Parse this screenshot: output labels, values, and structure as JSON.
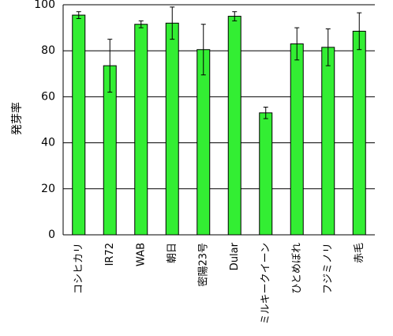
{
  "chart_data": {
    "type": "bar",
    "y_label": "発芽率",
    "categories": [
      "コシヒカリ",
      "IR72",
      "WAB",
      "朝日",
      "密陽23号",
      "Dular",
      "ミルキークイーン",
      "ひとめぼれ",
      "フジミノリ",
      "赤毛"
    ],
    "values": [
      95.5,
      73.5,
      91.5,
      92,
      80.5,
      95,
      53,
      83,
      81.5,
      88.5
    ],
    "errors": [
      1.5,
      11.5,
      1.5,
      7,
      11,
      2,
      2.5,
      7,
      8,
      8
    ],
    "color": "#33ee33",
    "ylim": [
      0,
      100
    ],
    "yticks": [
      0,
      20,
      40,
      60,
      80,
      100
    ],
    "grid": true
  }
}
